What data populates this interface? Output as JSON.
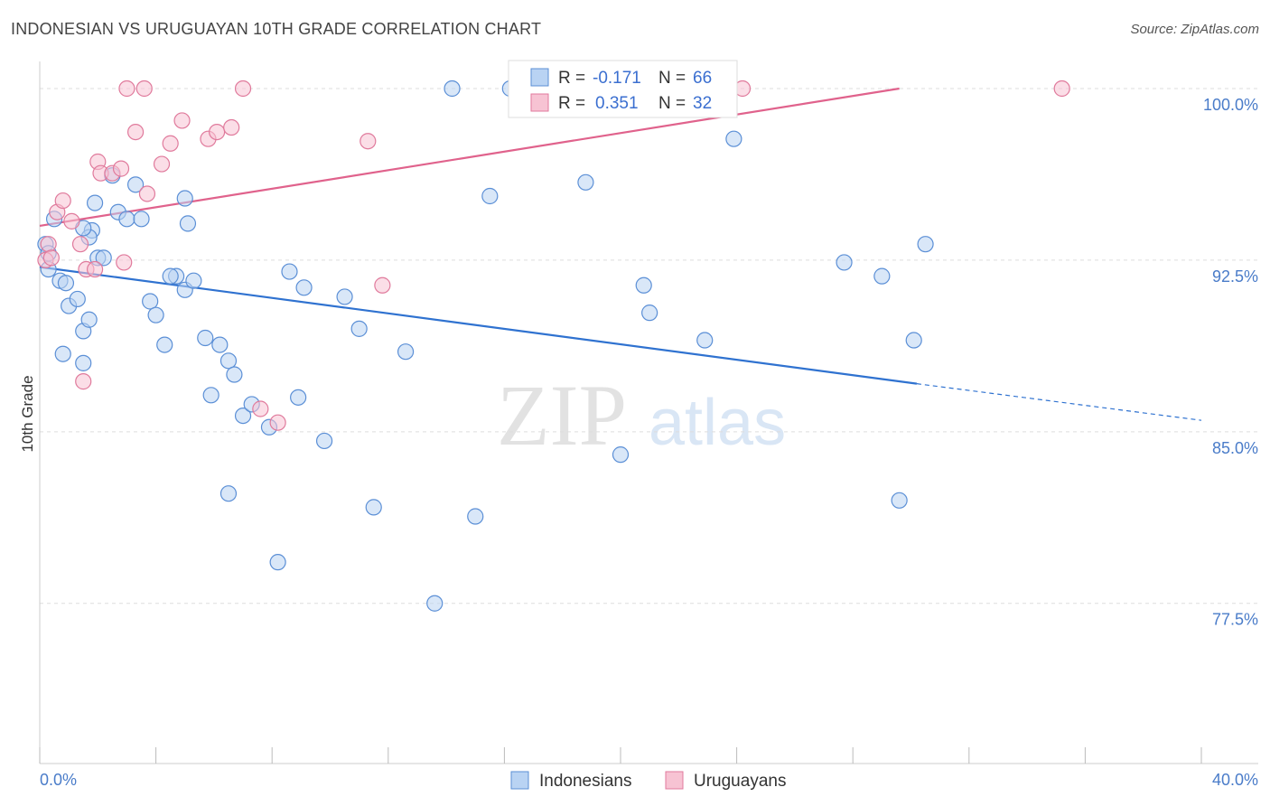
{
  "title": "INDONESIAN VS URUGUAYAN 10TH GRADE CORRELATION CHART",
  "source": "Source: ZipAtlas.com",
  "watermark": {
    "zip": "ZIP",
    "atlas": "atlas"
  },
  "colors": {
    "blue": "#5b8fd6",
    "blue_fill": "#b9d3f3",
    "blue_line": "#2f72d0",
    "pink": "#e07a9c",
    "pink_fill": "#f7c3d3",
    "pink_line": "#e0628c",
    "grid": "#dddddd",
    "axis_label": "#4a7cc9"
  },
  "legend": {
    "rows": [
      {
        "r_label": "R = ",
        "r_value": "-0.171",
        "n_label": "N = ",
        "n_value": "66"
      },
      {
        "r_label": "R = ",
        "r_value": "0.351",
        "n_label": "N = ",
        "n_value": "32"
      }
    ]
  },
  "chart_data": {
    "type": "scatter",
    "title": "INDONESIAN VS URUGUAYAN 10TH GRADE CORRELATION CHART",
    "xlabel": "",
    "ylabel": "10th Grade",
    "xlim": [
      0,
      40
    ],
    "ylim": [
      70.5,
      101.5
    ],
    "x_tick_labels": {
      "left": "0.0%",
      "right": "40.0%"
    },
    "y_ticks": [
      {
        "value": 100.0,
        "label": "100.0%"
      },
      {
        "value": 92.5,
        "label": "92.5%"
      },
      {
        "value": 85.0,
        "label": "85.0%"
      },
      {
        "value": 77.5,
        "label": "77.5%"
      }
    ],
    "legend_bottom": [
      "Indonesians",
      "Uruguayans"
    ],
    "series": [
      {
        "name": "Indonesians",
        "color": "blue",
        "trend": {
          "x0": 0,
          "y0": 92.2,
          "x1": 30.2,
          "y1": 87.1,
          "dash_to_x": 40,
          "dash_to_y": 85.5
        },
        "points": [
          [
            0.2,
            93.2
          ],
          [
            0.3,
            92.8
          ],
          [
            0.3,
            92.1
          ],
          [
            0.5,
            94.3
          ],
          [
            0.7,
            91.6
          ],
          [
            0.9,
            91.5
          ],
          [
            1.0,
            90.5
          ],
          [
            0.8,
            88.4
          ],
          [
            1.3,
            90.8
          ],
          [
            1.5,
            89.4
          ],
          [
            1.5,
            88.0
          ],
          [
            1.7,
            89.9
          ],
          [
            1.8,
            93.8
          ],
          [
            1.9,
            95.0
          ],
          [
            1.7,
            93.5
          ],
          [
            2.0,
            92.6
          ],
          [
            2.2,
            92.6
          ],
          [
            2.5,
            96.2
          ],
          [
            2.7,
            94.6
          ],
          [
            3.0,
            94.3
          ],
          [
            3.3,
            95.8
          ],
          [
            3.5,
            94.3
          ],
          [
            3.8,
            90.7
          ],
          [
            4.0,
            90.1
          ],
          [
            4.3,
            88.8
          ],
          [
            4.7,
            91.8
          ],
          [
            5.0,
            91.2
          ],
          [
            5.1,
            94.1
          ],
          [
            5.0,
            95.2
          ],
          [
            5.3,
            91.6
          ],
          [
            5.7,
            89.1
          ],
          [
            5.9,
            86.6
          ],
          [
            6.2,
            88.8
          ],
          [
            6.5,
            88.1
          ],
          [
            6.7,
            87.5
          ],
          [
            7.0,
            85.7
          ],
          [
            6.5,
            82.3
          ],
          [
            7.3,
            86.2
          ],
          [
            7.9,
            85.2
          ],
          [
            8.2,
            79.3
          ],
          [
            8.6,
            92.0
          ],
          [
            9.1,
            91.3
          ],
          [
            8.9,
            86.5
          ],
          [
            9.8,
            84.6
          ],
          [
            11.0,
            89.5
          ],
          [
            11.5,
            81.7
          ],
          [
            12.6,
            88.5
          ],
          [
            13.6,
            77.5
          ],
          [
            14.2,
            100.0
          ],
          [
            15.0,
            81.3
          ],
          [
            15.5,
            95.3
          ],
          [
            16.2,
            100.0
          ],
          [
            18.8,
            95.9
          ],
          [
            20.0,
            84.0
          ],
          [
            20.8,
            91.4
          ],
          [
            21.0,
            90.2
          ],
          [
            22.9,
            89.0
          ],
          [
            23.9,
            97.8
          ],
          [
            27.7,
            92.4
          ],
          [
            29.0,
            91.8
          ],
          [
            29.6,
            82.0
          ],
          [
            30.1,
            89.0
          ],
          [
            30.5,
            93.2
          ],
          [
            1.5,
            93.9
          ],
          [
            4.5,
            91.8
          ],
          [
            10.5,
            90.9
          ]
        ]
      },
      {
        "name": "Uruguayans",
        "color": "pink",
        "trend": {
          "x0": 0,
          "y0": 94.0,
          "x1": 29.6,
          "y1": 100.0
        },
        "points": [
          [
            0.2,
            92.5
          ],
          [
            0.3,
            93.2
          ],
          [
            0.4,
            92.6
          ],
          [
            0.6,
            94.6
          ],
          [
            0.8,
            95.1
          ],
          [
            1.1,
            94.2
          ],
          [
            1.4,
            93.2
          ],
          [
            1.5,
            87.2
          ],
          [
            1.6,
            92.1
          ],
          [
            1.9,
            92.1
          ],
          [
            2.0,
            96.8
          ],
          [
            2.1,
            96.3
          ],
          [
            2.5,
            96.3
          ],
          [
            2.8,
            96.5
          ],
          [
            2.9,
            92.4
          ],
          [
            3.0,
            100.0
          ],
          [
            3.3,
            98.1
          ],
          [
            3.6,
            100.0
          ],
          [
            3.7,
            95.4
          ],
          [
            4.2,
            96.7
          ],
          [
            4.5,
            97.6
          ],
          [
            4.9,
            98.6
          ],
          [
            5.8,
            97.8
          ],
          [
            6.1,
            98.1
          ],
          [
            6.6,
            98.3
          ],
          [
            7.0,
            100.0
          ],
          [
            7.6,
            86.0
          ],
          [
            8.2,
            85.4
          ],
          [
            11.3,
            97.7
          ],
          [
            11.8,
            91.4
          ],
          [
            24.2,
            100.0
          ],
          [
            35.2,
            100.0
          ]
        ]
      }
    ]
  }
}
